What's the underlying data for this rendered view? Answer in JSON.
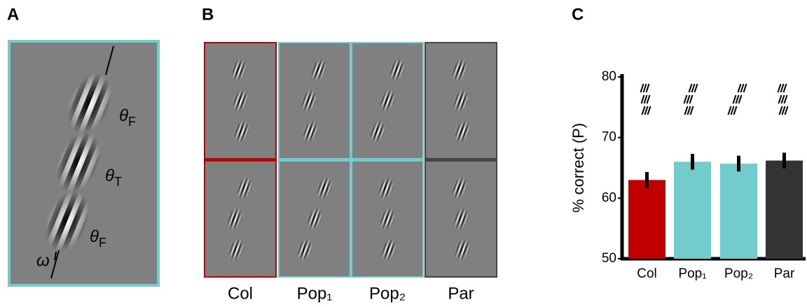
{
  "panel_a": {
    "letter": "A",
    "labels": [
      {
        "symbol": "θ",
        "subscript": "F"
      },
      {
        "symbol": "θ",
        "subscript": "T"
      },
      {
        "symbol": "θ",
        "subscript": "F"
      }
    ],
    "omega": "ω"
  },
  "panel_b": {
    "letter": "B",
    "labels": [
      "Col",
      "Pop₁",
      "Pop₂",
      "Par"
    ]
  },
  "chart_data": {
    "type": "bar",
    "letter": "C",
    "y_label": "% correct (P)",
    "categories": [
      "Col",
      "Pop₁",
      "Pop₂",
      "Par"
    ],
    "values": [
      63,
      66,
      65.7,
      66.2
    ],
    "errors": [
      1.3,
      1.3,
      1.3,
      1.3
    ],
    "colors": [
      "#c00000",
      "#72cccc",
      "#72cccc",
      "#333333"
    ],
    "ylim": [
      50,
      80
    ],
    "yticks": [
      50,
      60,
      70,
      80
    ]
  }
}
